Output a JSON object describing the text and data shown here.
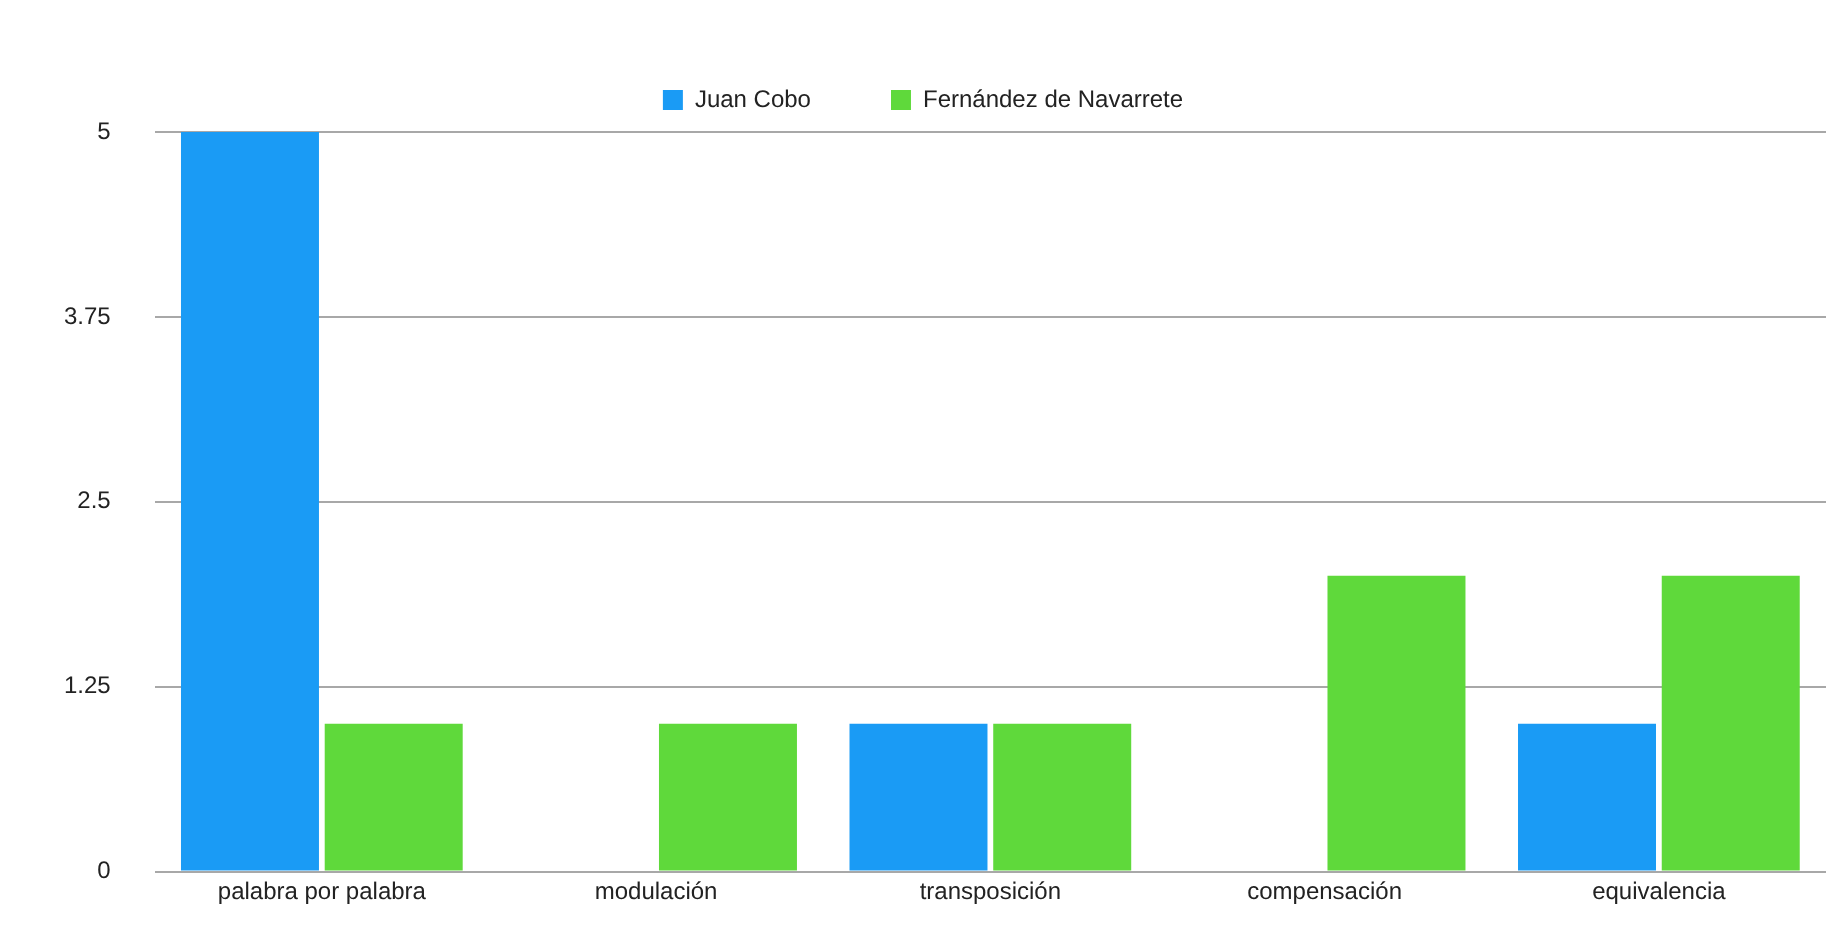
{
  "chart_data": {
    "type": "bar",
    "categories": [
      "palabra por palabra",
      "modulación",
      "transposición",
      "compensación",
      "equivalencia"
    ],
    "series": [
      {
        "name": "Juan Cobo",
        "color": "#1a9bf5",
        "values": [
          5,
          0,
          1,
          0,
          1
        ]
      },
      {
        "name": "Fernández de Navarrete",
        "color": "#5fd93b",
        "values": [
          1,
          1,
          1,
          2,
          2
        ]
      }
    ],
    "ylim": [
      0,
      5
    ],
    "yticks": [
      0,
      1.25,
      2.5,
      3.75,
      5
    ],
    "grid": "y",
    "legend": "top"
  }
}
